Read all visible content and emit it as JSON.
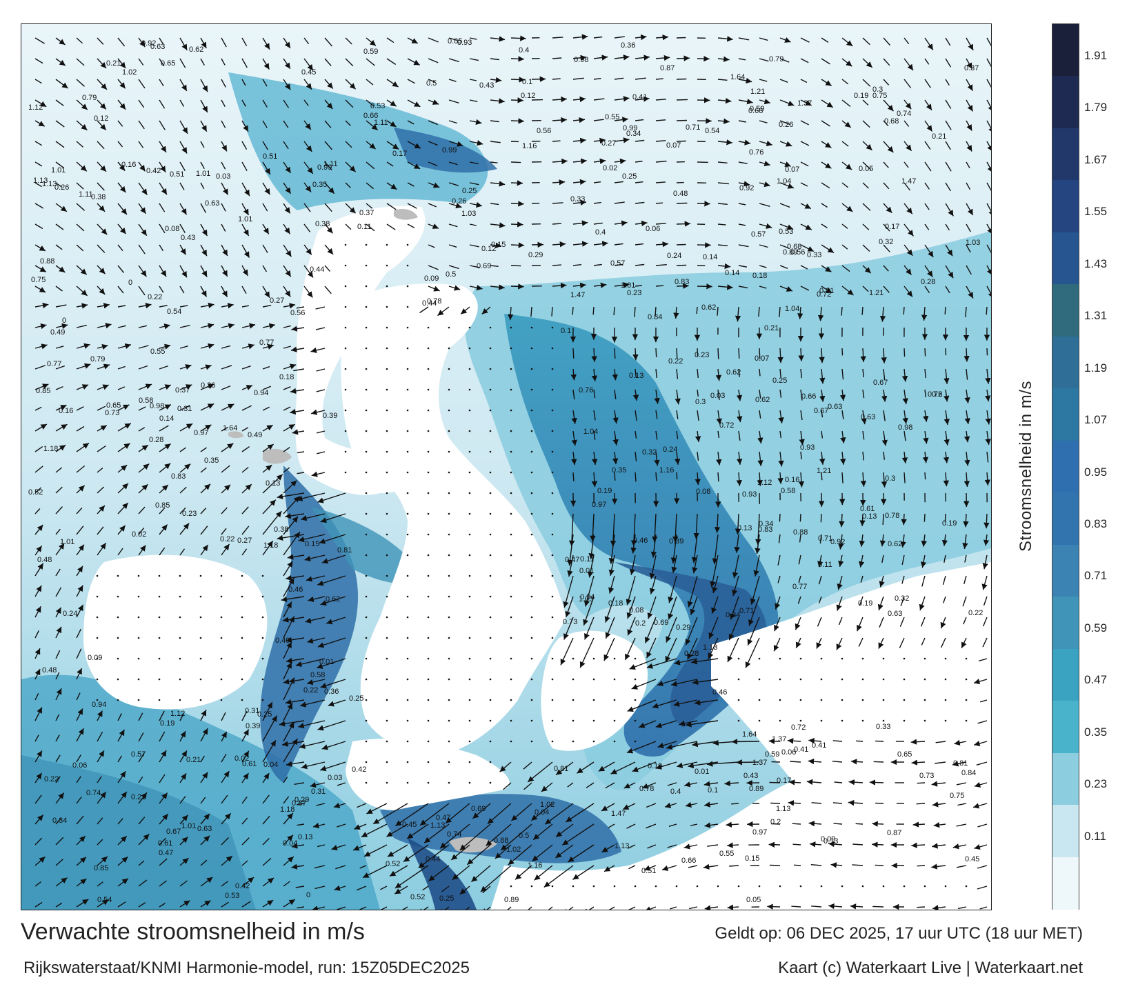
{
  "map": {
    "title": "Verwachte stroomsnelheid in m/s",
    "subtitle": "Rijkswaterstaat/KNMI Harmonie-model, run: 15Z05DEC2025",
    "valid_time": "Geldt op: 06 DEC 2025, 17 uur UTC (18 uur MET)",
    "credit": "Kaart (c) Waterkaart Live | Waterkaart.net",
    "colors": {
      "water_light": "#e8f4f8",
      "water_mid": "#6bb8d3",
      "water_dark": "#2f6fa8",
      "land": "#ffffff",
      "island": "#bdbdbd",
      "arrow": "#111111"
    }
  },
  "colorbar": {
    "title": "Stroomsnelheid in m/s",
    "ticks": [
      "1.91",
      "1.79",
      "1.67",
      "1.55",
      "1.43",
      "1.31",
      "1.19",
      "1.07",
      "0.95",
      "0.83",
      "0.71",
      "0.59",
      "0.47",
      "0.35",
      "0.23",
      "0.11"
    ],
    "colors": [
      "#1a1f3a",
      "#1e2a52",
      "#22386b",
      "#24457f",
      "#265590",
      "#2f6b7d",
      "#2f6e97",
      "#2d77a3",
      "#2f6fb0",
      "#3274ad",
      "#3a83b3",
      "#3f94b8",
      "#3aa3c2",
      "#49b3cc",
      "#8ccde0",
      "#c8e7f0",
      "#eef7fa"
    ]
  },
  "speed_labels": [
    {
      "t": "0.23"
    },
    {
      "t": "0.18"
    },
    {
      "t": "0.38"
    },
    {
      "t": "0.33"
    },
    {
      "t": "0.22"
    },
    {
      "t": "0.21"
    },
    {
      "t": "0.15"
    },
    {
      "t": "0.14"
    },
    {
      "t": "0.12"
    },
    {
      "t": "0.24"
    },
    {
      "t": "0.2"
    },
    {
      "t": "0.25"
    },
    {
      "t": "0.17"
    },
    {
      "t": "0.19"
    },
    {
      "t": "0.13"
    },
    {
      "t": "0.16"
    },
    {
      "t": "0.21"
    },
    {
      "t": "0.19"
    },
    {
      "t": "0.29"
    },
    {
      "t": "0.25"
    },
    {
      "t": "0.22"
    },
    {
      "t": "0.3"
    },
    {
      "t": "0.28"
    },
    {
      "t": "0.27"
    },
    {
      "t": "0.05"
    },
    {
      "t": "0.08"
    },
    {
      "t": "0.02"
    },
    {
      "t": "0.01"
    },
    {
      "t": "0.06"
    },
    {
      "t": "0.09"
    },
    {
      "t": "0.11"
    },
    {
      "t": "0.13"
    },
    {
      "t": "0.1"
    },
    {
      "t": "0.07"
    },
    {
      "t": "0.03"
    },
    {
      "t": "0.36"
    },
    {
      "t": "0.35"
    },
    {
      "t": "0.32"
    },
    {
      "t": "0.41"
    },
    {
      "t": "0.4"
    },
    {
      "t": "0.39"
    },
    {
      "t": "0.67"
    },
    {
      "t": "0.71"
    },
    {
      "t": "0.66"
    },
    {
      "t": "0.52"
    },
    {
      "t": "0.45"
    },
    {
      "t": "0.47"
    },
    {
      "t": "0.62"
    },
    {
      "t": "0.53"
    },
    {
      "t": "0.63"
    },
    {
      "t": "0.56"
    },
    {
      "t": "0.48"
    },
    {
      "t": "0.49"
    },
    {
      "t": "0.54"
    },
    {
      "t": "0.68"
    },
    {
      "t": "0.69"
    },
    {
      "t": "0.73"
    },
    {
      "t": "0.84"
    },
    {
      "t": "0.98"
    },
    {
      "t": "1.03"
    },
    {
      "t": "0.85"
    },
    {
      "t": "0.99"
    },
    {
      "t": "1.16"
    },
    {
      "t": "1.13"
    },
    {
      "t": "1.01"
    },
    {
      "t": "0.87"
    },
    {
      "t": "0.78"
    },
    {
      "t": "0.79"
    },
    {
      "t": "0.74"
    },
    {
      "t": "0.81"
    },
    {
      "t": "0.76"
    },
    {
      "t": "1.11"
    },
    {
      "t": "1.18"
    },
    {
      "t": "1.12"
    },
    {
      "t": "1.02"
    },
    {
      "t": "0.93"
    },
    {
      "t": "0.77"
    },
    {
      "t": "0.65"
    },
    {
      "t": "0.88"
    },
    {
      "t": "1.04"
    },
    {
      "t": "1.13"
    },
    {
      "t": "1.64"
    },
    {
      "t": "1.37"
    },
    {
      "t": "1.21"
    },
    {
      "t": "1.01"
    },
    {
      "t": "0.92"
    },
    {
      "t": "0.94"
    },
    {
      "t": "1.47"
    },
    {
      "t": "0.31"
    },
    {
      "t": "0.34"
    },
    {
      "t": "0.37"
    },
    {
      "t": "0.42"
    },
    {
      "t": "0.46"
    },
    {
      "t": "0.43"
    },
    {
      "t": "0.44"
    },
    {
      "t": "0.51"
    },
    {
      "t": "0.59"
    },
    {
      "t": "0.62"
    },
    {
      "t": "0.63"
    },
    {
      "t": "0.61"
    },
    {
      "t": "0.58"
    },
    {
      "t": "0.57"
    },
    {
      "t": "0.55"
    },
    {
      "t": "0.5"
    },
    {
      "t": "0.26"
    },
    {
      "t": "0.04"
    },
    {
      "t": "0"
    },
    {
      "t": "0.72"
    },
    {
      "t": "0.75"
    },
    {
      "t": "0.83"
    },
    {
      "t": "0.89"
    },
    {
      "t": "0.97"
    }
  ]
}
